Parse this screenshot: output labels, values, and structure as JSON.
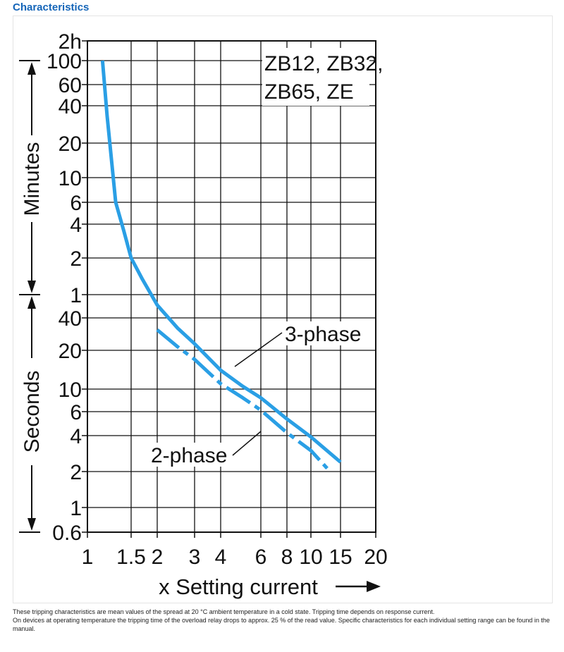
{
  "header": {
    "title": "Characteristics"
  },
  "chart_data": {
    "type": "line",
    "x_axis": {
      "label": "x Setting current",
      "scale": "log",
      "ticks": [
        "1",
        "1.5",
        "2",
        "3",
        "4",
        "6",
        "8",
        "10",
        "15",
        "20"
      ],
      "tick_values": [
        1,
        1.5,
        2,
        3,
        4,
        6,
        8,
        10,
        15,
        20
      ]
    },
    "y_axis": {
      "scale": "log",
      "minutes_label": "Minutes",
      "seconds_label": "Seconds",
      "ticks": [
        "2h",
        "100",
        "60",
        "40",
        "20",
        "10",
        "6",
        "4",
        "2",
        "1",
        "40",
        "20",
        "10",
        "6",
        "4",
        "2",
        "1",
        "0.6"
      ],
      "tick_values_seconds": [
        7200,
        6000,
        3600,
        2400,
        1200,
        600,
        360,
        240,
        120,
        60,
        40,
        20,
        10,
        6,
        4,
        2,
        1,
        0.6
      ]
    },
    "box_label": [
      "ZB12, ZB32,",
      "ZB65, ZE"
    ],
    "grid": true,
    "series": [
      {
        "name": "3-phase",
        "style": "solid",
        "color": "#2a9fe5",
        "points": [
          [
            1.15,
            6000
          ],
          [
            1.2,
            2000
          ],
          [
            1.3,
            360
          ],
          [
            1.4,
            210
          ],
          [
            1.5,
            120
          ],
          [
            1.7,
            80
          ],
          [
            2,
            50
          ],
          [
            2.5,
            32
          ],
          [
            3,
            23
          ],
          [
            4,
            14
          ],
          [
            5,
            10.5
          ],
          [
            6,
            8.2
          ],
          [
            8,
            5.3
          ],
          [
            10,
            3.9
          ],
          [
            15,
            2.4
          ]
        ]
      },
      {
        "name": "2-phase",
        "style": "dash-dot",
        "color": "#2a9fe5",
        "points": [
          [
            2,
            31
          ],
          [
            2.5,
            21.5
          ],
          [
            3,
            17
          ],
          [
            4,
            11
          ],
          [
            5,
            8.2
          ],
          [
            6,
            6.2
          ],
          [
            8,
            4.2
          ],
          [
            10,
            3.0
          ],
          [
            13,
            2.0
          ]
        ]
      }
    ],
    "annotations": [
      "3-phase",
      "2-phase"
    ]
  },
  "caption": {
    "line1": "These tripping characteristics are mean values of the spread at 20 °C ambient temperature in a cold state. Tripping time depends on response current.",
    "line2": "On devices at operating temperature the tripping time of the overload relay drops to approx. 25 % of the read value. Specific characteristics for each individual setting range can be found in the manual."
  }
}
